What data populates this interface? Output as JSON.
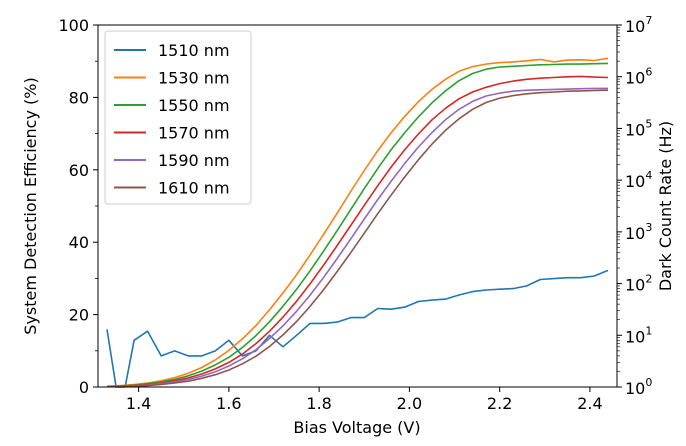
{
  "chart_data": {
    "type": "line",
    "xlabel": "Bias Voltage (V)",
    "ylabel": "System Detection Efficiency (%)",
    "y2label": "Dark Count Rate (Hz)",
    "xlim": [
      1.31,
      2.46
    ],
    "ylim": [
      0,
      100
    ],
    "y2lim": [
      1,
      10000000
    ],
    "y2scale": "log",
    "grid": "off",
    "legend_position": "top-left",
    "x_ticks": [
      "1.4",
      "1.6",
      "1.8",
      "2.0",
      "2.2",
      "2.4"
    ],
    "y_ticks": [
      "0",
      "20",
      "40",
      "60",
      "80",
      "100"
    ],
    "y2_ticks": [
      {
        "base": "10",
        "exp": "0"
      },
      {
        "base": "10",
        "exp": "1"
      },
      {
        "base": "10",
        "exp": "2"
      },
      {
        "base": "10",
        "exp": "3"
      },
      {
        "base": "10",
        "exp": "4"
      },
      {
        "base": "10",
        "exp": "5"
      },
      {
        "base": "10",
        "exp": "6"
      },
      {
        "base": "10",
        "exp": "7"
      }
    ],
    "series": [
      {
        "name": "1510 nm",
        "color": "#1f77b4",
        "axis": "right",
        "x": [
          1.33,
          1.35,
          1.37,
          1.39,
          1.42,
          1.45,
          1.48,
          1.51,
          1.54,
          1.57,
          1.6,
          1.63,
          1.66,
          1.69,
          1.72,
          1.75,
          1.78,
          1.81,
          1.84,
          1.87,
          1.9,
          1.93,
          1.96,
          1.99,
          2.02,
          2.05,
          2.08,
          2.11,
          2.14,
          2.17,
          2.2,
          2.23,
          2.26,
          2.29,
          2.32,
          2.35,
          2.38,
          2.41,
          2.44
        ],
        "y": [
          13,
          1,
          1,
          8,
          12,
          4,
          5,
          4,
          4,
          5,
          8,
          4,
          5,
          10,
          6,
          10,
          17,
          17,
          18,
          22,
          22,
          33,
          32,
          35,
          45,
          48,
          50,
          60,
          70,
          75,
          78,
          80,
          90,
          120,
          125,
          130,
          130,
          140,
          180
        ]
      },
      {
        "name": "1530 nm",
        "color": "#ff7f0e",
        "axis": "left",
        "x": [
          1.33,
          1.36,
          1.39,
          1.42,
          1.45,
          1.48,
          1.51,
          1.54,
          1.57,
          1.6,
          1.63,
          1.66,
          1.69,
          1.72,
          1.75,
          1.78,
          1.81,
          1.84,
          1.87,
          1.9,
          1.93,
          1.96,
          1.99,
          2.02,
          2.05,
          2.08,
          2.11,
          2.14,
          2.17,
          2.2,
          2.23,
          2.26,
          2.29,
          2.32,
          2.35,
          2.38,
          2.41,
          2.44
        ],
        "y": [
          0.2,
          0.4,
          0.7,
          1.1,
          1.7,
          2.6,
          3.8,
          5.4,
          7.5,
          10.1,
          13.3,
          17.0,
          21.3,
          26.0,
          31.0,
          36.5,
          42.2,
          48.0,
          54.0,
          59.8,
          65.3,
          70.3,
          74.8,
          78.8,
          82.2,
          85.0,
          87.2,
          88.5,
          89.2,
          89.6,
          89.8,
          90.1,
          90.5,
          89.8,
          90.3,
          90.4,
          90.2,
          90.8
        ]
      },
      {
        "name": "1550 nm",
        "color": "#2ca02c",
        "axis": "left",
        "x": [
          1.33,
          1.36,
          1.39,
          1.42,
          1.45,
          1.48,
          1.51,
          1.54,
          1.57,
          1.6,
          1.63,
          1.66,
          1.69,
          1.72,
          1.75,
          1.78,
          1.81,
          1.84,
          1.87,
          1.9,
          1.93,
          1.96,
          1.99,
          2.02,
          2.05,
          2.08,
          2.11,
          2.14,
          2.17,
          2.2,
          2.23,
          2.26,
          2.29,
          2.32,
          2.35,
          2.38,
          2.41,
          2.44
        ],
        "y": [
          0.1,
          0.3,
          0.5,
          0.9,
          1.4,
          2.1,
          3.1,
          4.4,
          6.1,
          8.2,
          10.9,
          14.2,
          18.0,
          22.3,
          27.0,
          32.1,
          37.6,
          43.2,
          49.0,
          54.8,
          60.4,
          65.6,
          70.3,
          74.6,
          78.5,
          81.8,
          84.6,
          86.6,
          87.8,
          88.4,
          88.6,
          88.8,
          89.0,
          89.1,
          89.2,
          89.2,
          89.3,
          89.4
        ]
      },
      {
        "name": "1570 nm",
        "color": "#d62728",
        "axis": "left",
        "x": [
          1.33,
          1.36,
          1.39,
          1.42,
          1.45,
          1.48,
          1.51,
          1.54,
          1.57,
          1.6,
          1.63,
          1.66,
          1.69,
          1.72,
          1.75,
          1.78,
          1.81,
          1.84,
          1.87,
          1.9,
          1.93,
          1.96,
          1.99,
          2.02,
          2.05,
          2.08,
          2.11,
          2.14,
          2.17,
          2.2,
          2.23,
          2.26,
          2.29,
          2.32,
          2.35,
          2.38,
          2.41,
          2.44
        ],
        "y": [
          0.1,
          0.2,
          0.4,
          0.7,
          1.1,
          1.7,
          2.5,
          3.6,
          5.0,
          6.8,
          9.1,
          12.0,
          15.4,
          19.3,
          23.7,
          28.5,
          33.7,
          39.1,
          44.6,
          50.2,
          55.6,
          60.8,
          65.6,
          69.9,
          73.8,
          77.0,
          79.6,
          81.5,
          82.8,
          83.8,
          84.5,
          85.0,
          85.3,
          85.5,
          85.7,
          85.8,
          85.6,
          85.5
        ]
      },
      {
        "name": "1590 nm",
        "color": "#9467bd",
        "axis": "left",
        "x": [
          1.33,
          1.36,
          1.39,
          1.42,
          1.45,
          1.48,
          1.51,
          1.54,
          1.57,
          1.6,
          1.63,
          1.66,
          1.69,
          1.72,
          1.75,
          1.78,
          1.81,
          1.84,
          1.87,
          1.9,
          1.93,
          1.96,
          1.99,
          2.02,
          2.05,
          2.08,
          2.11,
          2.14,
          2.17,
          2.2,
          2.23,
          2.26,
          2.29,
          2.32,
          2.35,
          2.38,
          2.41,
          2.44
        ],
        "y": [
          0.1,
          0.2,
          0.3,
          0.5,
          0.9,
          1.4,
          2.1,
          3.0,
          4.2,
          5.8,
          7.8,
          10.3,
          13.4,
          16.9,
          20.9,
          25.4,
          30.3,
          35.5,
          40.9,
          46.4,
          51.8,
          56.9,
          61.8,
          66.3,
          70.3,
          73.8,
          76.7,
          78.9,
          80.4,
          81.2,
          81.7,
          82.0,
          82.1,
          82.2,
          82.3,
          82.4,
          82.5,
          82.5
        ]
      },
      {
        "name": "1610 nm",
        "color": "#8c564b",
        "axis": "left",
        "x": [
          1.33,
          1.36,
          1.39,
          1.42,
          1.45,
          1.48,
          1.51,
          1.54,
          1.57,
          1.6,
          1.63,
          1.66,
          1.69,
          1.72,
          1.75,
          1.78,
          1.81,
          1.84,
          1.87,
          1.9,
          1.93,
          1.96,
          1.99,
          2.02,
          2.05,
          2.08,
          2.11,
          2.14,
          2.17,
          2.2,
          2.23,
          2.26,
          2.29,
          2.32,
          2.35,
          2.38,
          2.41,
          2.44
        ],
        "y": [
          0.1,
          0.1,
          0.2,
          0.4,
          0.7,
          1.1,
          1.6,
          2.4,
          3.4,
          4.7,
          6.4,
          8.5,
          11.2,
          14.4,
          18.1,
          22.3,
          26.9,
          31.9,
          37.1,
          42.5,
          47.9,
          53.1,
          58.1,
          62.8,
          67.1,
          70.9,
          74.1,
          76.7,
          78.6,
          79.8,
          80.5,
          81.0,
          81.3,
          81.5,
          81.7,
          81.8,
          81.9,
          82.0
        ]
      }
    ]
  }
}
